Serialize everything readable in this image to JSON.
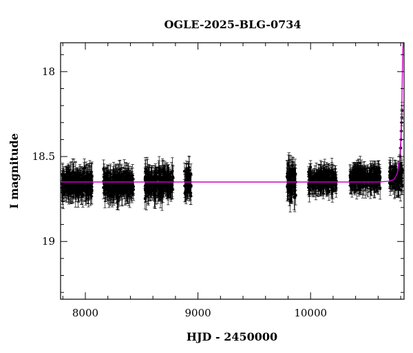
{
  "chart_data": {
    "type": "scatter",
    "title": "OGLE-2025-BLG-0734",
    "xlabel": "HJD - 2450000",
    "ylabel": "I magnitude",
    "xlim": [
      7780,
      10830
    ],
    "ylim": [
      19.34,
      17.83
    ],
    "y_inverted": true,
    "grid": false,
    "legend": "none",
    "x_ticks": [
      8000,
      9000,
      10000
    ],
    "x_tick_labels": [
      "8000",
      "9000",
      "10000"
    ],
    "y_ticks": [
      18,
      18.5,
      19
    ],
    "y_tick_labels": [
      "18",
      "18.5",
      "19"
    ],
    "colors": {
      "points": "#000000",
      "model": "#cc00cc",
      "frame": "#000000"
    },
    "series": [
      {
        "kind": "points_with_errorbars",
        "seasons": [
          {
            "x_range": [
              7790,
              8060
            ],
            "mag_center": 18.66,
            "mag_scatter": 0.05,
            "err": 0.06
          },
          {
            "x_range": [
              8160,
              8430
            ],
            "mag_center": 18.66,
            "mag_scatter": 0.05,
            "err": 0.06
          },
          {
            "x_range": [
              8530,
              8780
            ],
            "mag_center": 18.66,
            "mag_scatter": 0.05,
            "err": 0.06
          },
          {
            "x_range": [
              8880,
              8940
            ],
            "mag_center": 18.66,
            "mag_scatter": 0.06,
            "err": 0.06
          },
          {
            "x_range": [
              9790,
              9870
            ],
            "mag_center": 18.65,
            "mag_scatter": 0.07,
            "err": 0.07
          },
          {
            "x_range": [
              9980,
              10230
            ],
            "mag_center": 18.64,
            "mag_scatter": 0.04,
            "err": 0.05
          },
          {
            "x_range": [
              10350,
              10620
            ],
            "mag_center": 18.63,
            "mag_scatter": 0.04,
            "err": 0.05
          },
          {
            "x_range": [
              10700,
              10820
            ],
            "mag_center": 18.62,
            "mag_scatter": 0.05,
            "err": 0.05
          }
        ],
        "rising_points": [
          {
            "x": 10790,
            "y": 18.55
          },
          {
            "x": 10795,
            "y": 18.5
          },
          {
            "x": 10800,
            "y": 18.45
          },
          {
            "x": 10803,
            "y": 18.4
          },
          {
            "x": 10806,
            "y": 18.35
          },
          {
            "x": 10808,
            "y": 18.3
          },
          {
            "x": 10810,
            "y": 18.27
          },
          {
            "x": 10812,
            "y": 18.23
          }
        ]
      },
      {
        "kind": "model_curve",
        "baseline_mag": 18.65,
        "points": [
          {
            "x": 7780,
            "y": 18.65
          },
          {
            "x": 10600,
            "y": 18.65
          },
          {
            "x": 10700,
            "y": 18.645
          },
          {
            "x": 10740,
            "y": 18.635
          },
          {
            "x": 10770,
            "y": 18.6
          },
          {
            "x": 10790,
            "y": 18.52
          },
          {
            "x": 10800,
            "y": 18.42
          },
          {
            "x": 10810,
            "y": 18.22
          },
          {
            "x": 10818,
            "y": 17.9
          },
          {
            "x": 10822,
            "y": 17.75
          }
        ]
      }
    ]
  }
}
